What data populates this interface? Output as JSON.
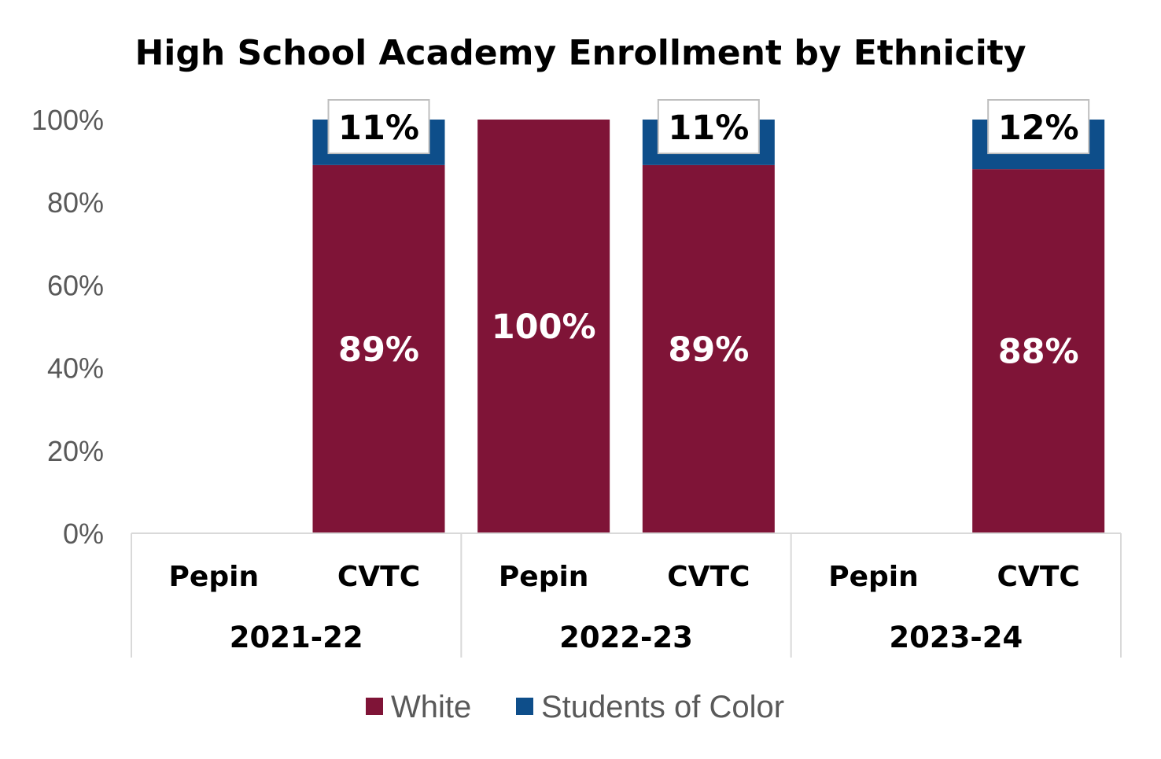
{
  "chart_data": {
    "type": "bar",
    "stacked": true,
    "title": "High School Academy Enrollment by Ethnicity",
    "xlabel": "",
    "ylabel": "",
    "ylim": [
      0,
      100
    ],
    "yticks": [
      "0%",
      "20%",
      "40%",
      "60%",
      "80%",
      "100%"
    ],
    "groups": [
      "2021-22",
      "2022-23",
      "2023-24"
    ],
    "categories": [
      "Pepin",
      "CVTC",
      "Pepin",
      "CVTC",
      "Pepin",
      "CVTC"
    ],
    "series": [
      {
        "name": "White",
        "color": "#7f1437",
        "values": [
          0,
          89,
          100,
          89,
          0,
          88
        ],
        "labels": [
          "",
          "89%",
          "100%",
          "89%",
          "",
          "88%"
        ]
      },
      {
        "name": "Students of Color",
        "color": "#0e4e8a",
        "values": [
          0,
          11,
          0,
          11,
          0,
          12
        ],
        "labels": [
          "",
          "11%",
          "",
          "11%",
          "",
          "12%"
        ]
      }
    ],
    "legend_position": "bottom",
    "grid": false
  }
}
